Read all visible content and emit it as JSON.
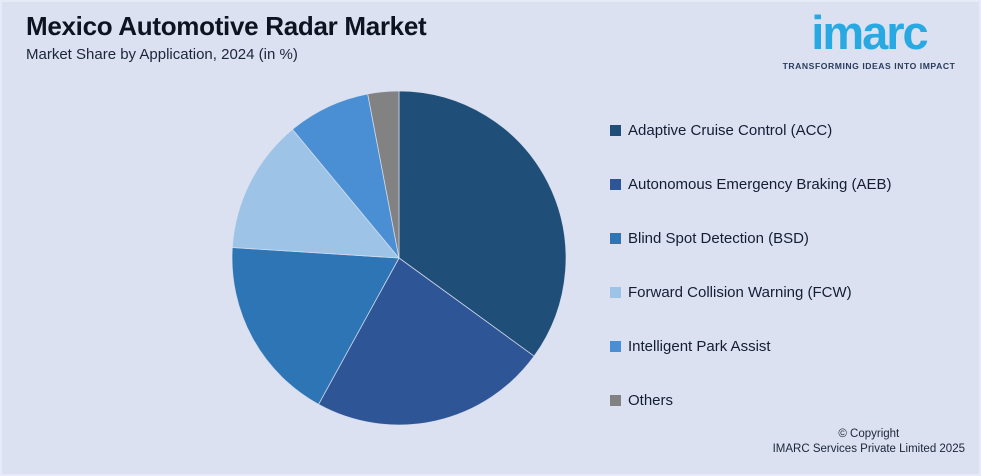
{
  "page": {
    "background_color": "#dbe1f1",
    "title": "Mexico Automotive Radar Market",
    "subtitle": "Market Share by Application, 2024 (in %)"
  },
  "logo": {
    "wordmark": "imarc",
    "tagline": "TRANSFORMING IDEAS INTO IMPACT",
    "wordmark_color": "#29a9e1",
    "tagline_color": "#2a3b5e"
  },
  "chart_data": {
    "type": "pie",
    "title": "Mexico Automotive Radar Market",
    "subtitle": "Market Share by Application, 2024 (in %)",
    "units": "%",
    "direction": "clockwise",
    "start_angle_deg_from_top": 0,
    "legend_position": "right",
    "slices": [
      {
        "label": "Adaptive Cruise Control (ACC)",
        "value": 35,
        "color": "#1f4e79"
      },
      {
        "label": "Autonomous Emergency Braking (AEB)",
        "value": 23,
        "color": "#2e5596"
      },
      {
        "label": "Blind Spot Detection (BSD)",
        "value": 18,
        "color": "#2e75b6"
      },
      {
        "label": "Forward Collision Warning (FCW)",
        "value": 13,
        "color": "#9dc3e6"
      },
      {
        "label": "Intelligent Park Assist",
        "value": 8,
        "color": "#4a8fd3"
      },
      {
        "label": "Others",
        "value": 3,
        "color": "#828282"
      }
    ]
  },
  "footer": {
    "copyright_line1": "© Copyright",
    "copyright_line2": "IMARC Services Private Limited 2025"
  }
}
